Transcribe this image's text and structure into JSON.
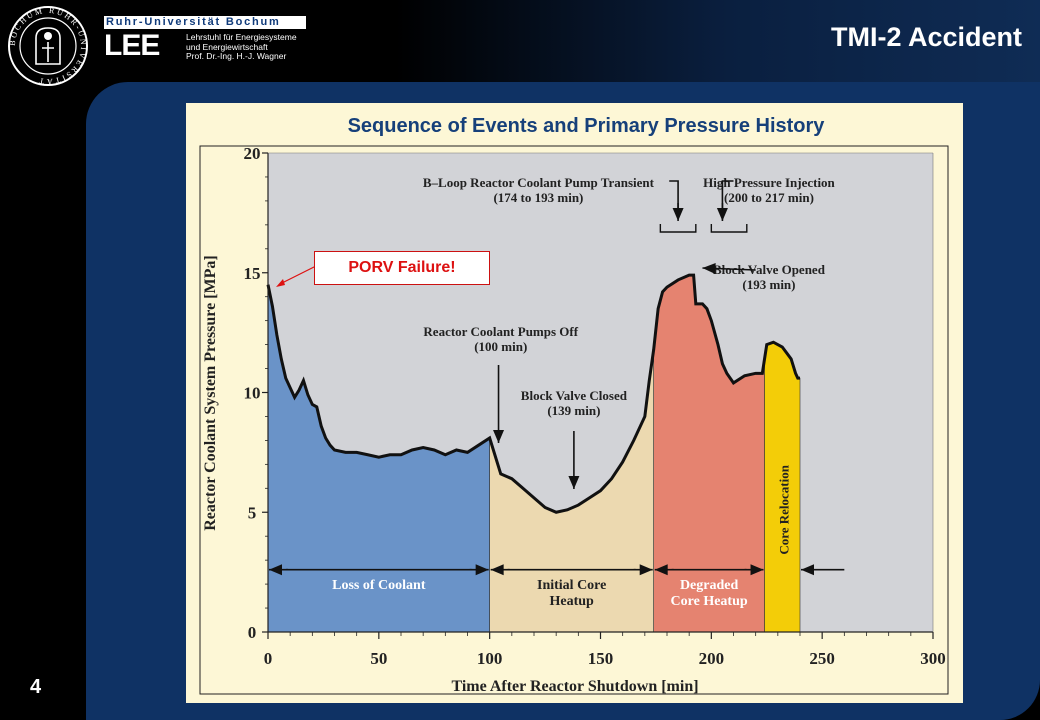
{
  "header": {
    "university": "Ruhr-Universität Bochum",
    "seal_text": "BOCHUM RUHR-UNIVERSITÄT",
    "lee_logo": "LEE",
    "chair_lines": [
      "Lehrstuhl für Energiesysteme",
      "und Energiewirtschaft",
      "Prof. Dr.-Ing. H.-J. Wagner"
    ],
    "slide_title": "TMI-2 Accident"
  },
  "slide_number": "4",
  "callout": "PORV Failure!",
  "colors": {
    "loss_of_coolant": "#6a93c8",
    "initial_core_heatup": "#ecd9b0",
    "degraded_core_heatup": "#e58370",
    "core_relocation": "#f3cd08",
    "plot_background": "#d2d3d7",
    "figure_background": "#fdf7d6",
    "title_blue": "#16407a",
    "callout_red": "#dd1111"
  },
  "chart_data": {
    "type": "area",
    "title": "Sequence of Events and Primary Pressure History",
    "xlabel": "Time After Reactor Shutdown [min]",
    "ylabel": "Reactor Coolant System Pressure [MPa]",
    "xlim": [
      0,
      300
    ],
    "ylim": [
      0,
      20
    ],
    "xticks": [
      0,
      50,
      100,
      150,
      200,
      250,
      300
    ],
    "yticks": [
      0,
      5,
      10,
      15,
      20
    ],
    "series": [
      {
        "x": [
          0,
          2,
          4,
          6,
          8,
          10,
          12,
          14,
          16,
          18,
          20,
          22,
          24,
          26,
          28,
          30,
          35,
          40,
          45,
          50,
          55,
          60,
          65,
          70,
          75,
          80,
          85,
          90,
          95,
          100,
          105,
          110,
          115,
          120,
          125,
          130,
          135,
          140,
          145,
          150,
          155,
          160,
          165,
          170,
          172,
          174,
          176,
          178,
          180,
          185,
          190,
          192,
          193,
          196,
          198,
          200,
          203,
          205,
          207,
          210,
          215,
          220,
          223,
          225,
          228,
          232,
          236,
          238,
          239,
          240
        ],
        "y": [
          14.5,
          13.6,
          12.4,
          11.4,
          10.6,
          10.2,
          9.8,
          10.1,
          10.5,
          9.9,
          9.5,
          9.4,
          8.6,
          8.1,
          7.8,
          7.6,
          7.5,
          7.5,
          7.4,
          7.3,
          7.4,
          7.4,
          7.6,
          7.7,
          7.6,
          7.4,
          7.6,
          7.5,
          7.8,
          8.1,
          6.6,
          6.4,
          6.0,
          5.6,
          5.2,
          5.0,
          5.1,
          5.3,
          5.6,
          5.9,
          6.4,
          7.1,
          8.0,
          9.0,
          10.5,
          11.8,
          13.5,
          14.2,
          14.4,
          14.7,
          14.9,
          14.9,
          13.7,
          13.7,
          13.5,
          13.0,
          12.0,
          11.2,
          10.8,
          10.4,
          10.7,
          10.8,
          10.8,
          12.0,
          12.1,
          11.9,
          11.4,
          10.8,
          10.6,
          10.6
        ]
      }
    ],
    "phases": [
      {
        "label": "Loss of Coolant",
        "start": 0,
        "end": 100
      },
      {
        "label": "Initial Core\nHeatup",
        "start": 100,
        "end": 174
      },
      {
        "label": "Degraded\nCore Heatup",
        "start": 174,
        "end": 224
      },
      {
        "label": "Core Relocation",
        "start": 224,
        "end": 240
      }
    ],
    "annotations": [
      {
        "text": "B–Loop Reactor Coolant Pump Transient\n(174 to 193 min)"
      },
      {
        "text": "High Pressure Injection\n(200 to 217 min)"
      },
      {
        "text": "Block Valve Opened\n(193 min)"
      },
      {
        "text": "Reactor Coolant Pumps Off\n(100 min)"
      },
      {
        "text": "Block Valve Closed\n(139 min)"
      }
    ]
  }
}
